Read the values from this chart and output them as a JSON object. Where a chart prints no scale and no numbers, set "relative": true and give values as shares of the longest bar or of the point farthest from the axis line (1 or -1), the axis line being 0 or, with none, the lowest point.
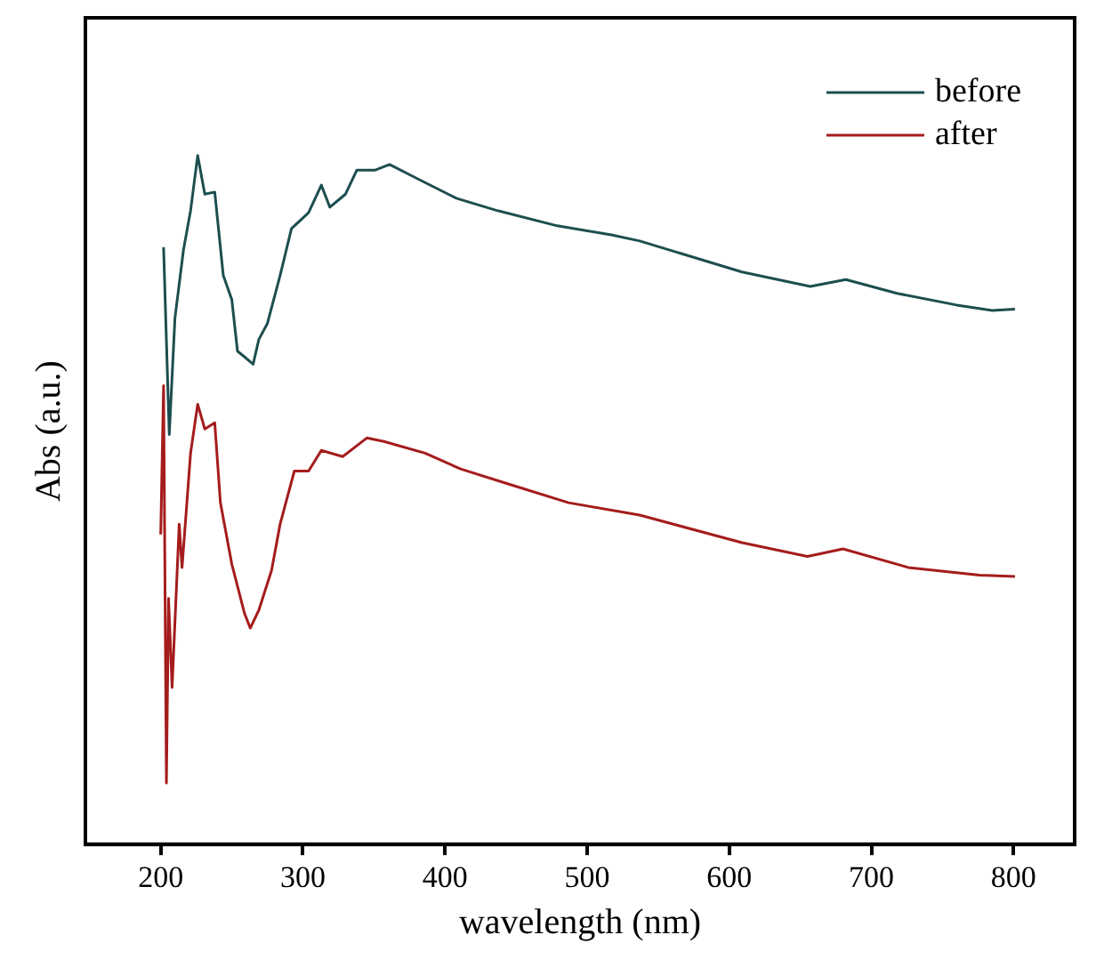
{
  "chart_data": {
    "type": "line",
    "xlabel": "wavelength (nm)",
    "ylabel": "Abs (a.u.)",
    "relative": true,
    "xlim": [
      147,
      843
    ],
    "xticks": [
      200,
      300,
      400,
      500,
      600,
      700,
      800
    ],
    "legend": "top right",
    "grid": false,
    "marker": "none",
    "line_style": "solid",
    "series": [
      {
        "name": "before",
        "color": "#1d4e4f",
        "x": [
          202,
          206,
          210,
          216,
          221,
          226,
          231,
          238,
          244,
          250,
          254,
          260,
          265,
          269,
          275,
          284,
          292,
          304,
          313,
          319,
          330,
          338,
          351,
          361,
          382,
          408,
          437,
          479,
          517,
          537,
          609,
          657,
          682,
          718,
          760,
          785,
          801
        ],
        "values": [
          0.867,
          0.595,
          0.764,
          0.863,
          0.92,
          1.0,
          0.944,
          0.947,
          0.826,
          0.791,
          0.716,
          0.706,
          0.697,
          0.733,
          0.756,
          0.826,
          0.894,
          0.917,
          0.957,
          0.925,
          0.944,
          0.979,
          0.979,
          0.987,
          0.965,
          0.938,
          0.92,
          0.898,
          0.885,
          0.876,
          0.831,
          0.81,
          0.82,
          0.8,
          0.783,
          0.775,
          0.777
        ]
      },
      {
        "name": "after",
        "color": "#a51c1c",
        "x": [
          200,
          202,
          204,
          205.5,
          208,
          213,
          215,
          221,
          226,
          231,
          238,
          242,
          250,
          259,
          263,
          269,
          278,
          284,
          294,
          304,
          313,
          328,
          345,
          357,
          386,
          411,
          445,
          487,
          537,
          609,
          655,
          680,
          726,
          776,
          801
        ],
        "values": [
          0.45,
          0.666,
          0.089,
          0.357,
          0.228,
          0.465,
          0.402,
          0.568,
          0.639,
          0.603,
          0.612,
          0.496,
          0.407,
          0.335,
          0.314,
          0.34,
          0.398,
          0.465,
          0.542,
          0.542,
          0.572,
          0.563,
          0.59,
          0.585,
          0.568,
          0.545,
          0.523,
          0.496,
          0.478,
          0.438,
          0.418,
          0.429,
          0.402,
          0.391,
          0.389
        ]
      }
    ]
  }
}
